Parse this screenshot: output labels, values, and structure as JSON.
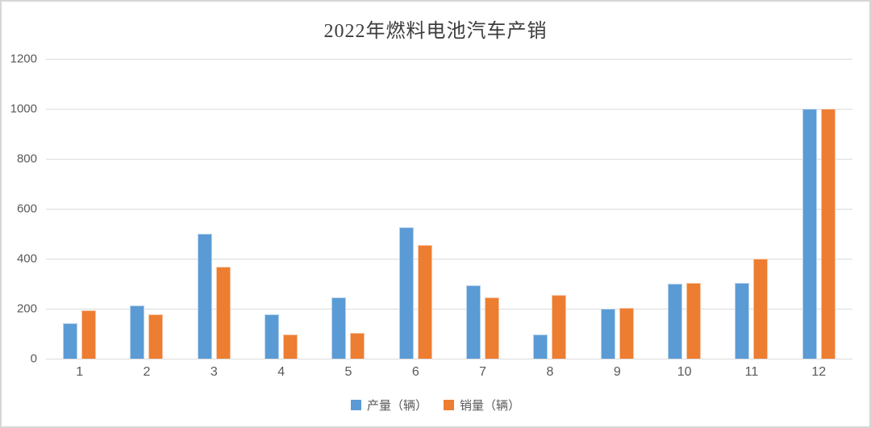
{
  "page": {
    "background": "#ffffff",
    "border_color": "#d6d6d6"
  },
  "styles": {
    "gridline_color": "#dcdcdc",
    "tick_label_color": "#595959",
    "title_color": "#3d3d3d"
  },
  "chart_data": {
    "type": "bar",
    "title": "2022年燃料电池汽车产销",
    "xlabel": "",
    "ylabel": "",
    "categories": [
      "1",
      "2",
      "3",
      "4",
      "5",
      "6",
      "7",
      "8",
      "9",
      "10",
      "11",
      "12"
    ],
    "series": [
      {
        "name": "产量（辆）",
        "color": "#5B9BD5",
        "values": [
          142,
          213,
          500,
          178,
          244,
          527,
          292,
          98,
          200,
          301,
          303,
          1000
        ]
      },
      {
        "name": "销量（辆）",
        "color": "#ED7D31",
        "values": [
          192,
          178,
          368,
          96,
          104,
          455,
          245,
          256,
          202,
          302,
          400,
          1000
        ]
      }
    ],
    "ylim": [
      0,
      1200
    ],
    "yticks": [
      0,
      200,
      400,
      600,
      800,
      1000,
      1200
    ],
    "grid": true,
    "legend_position": "bottom"
  }
}
